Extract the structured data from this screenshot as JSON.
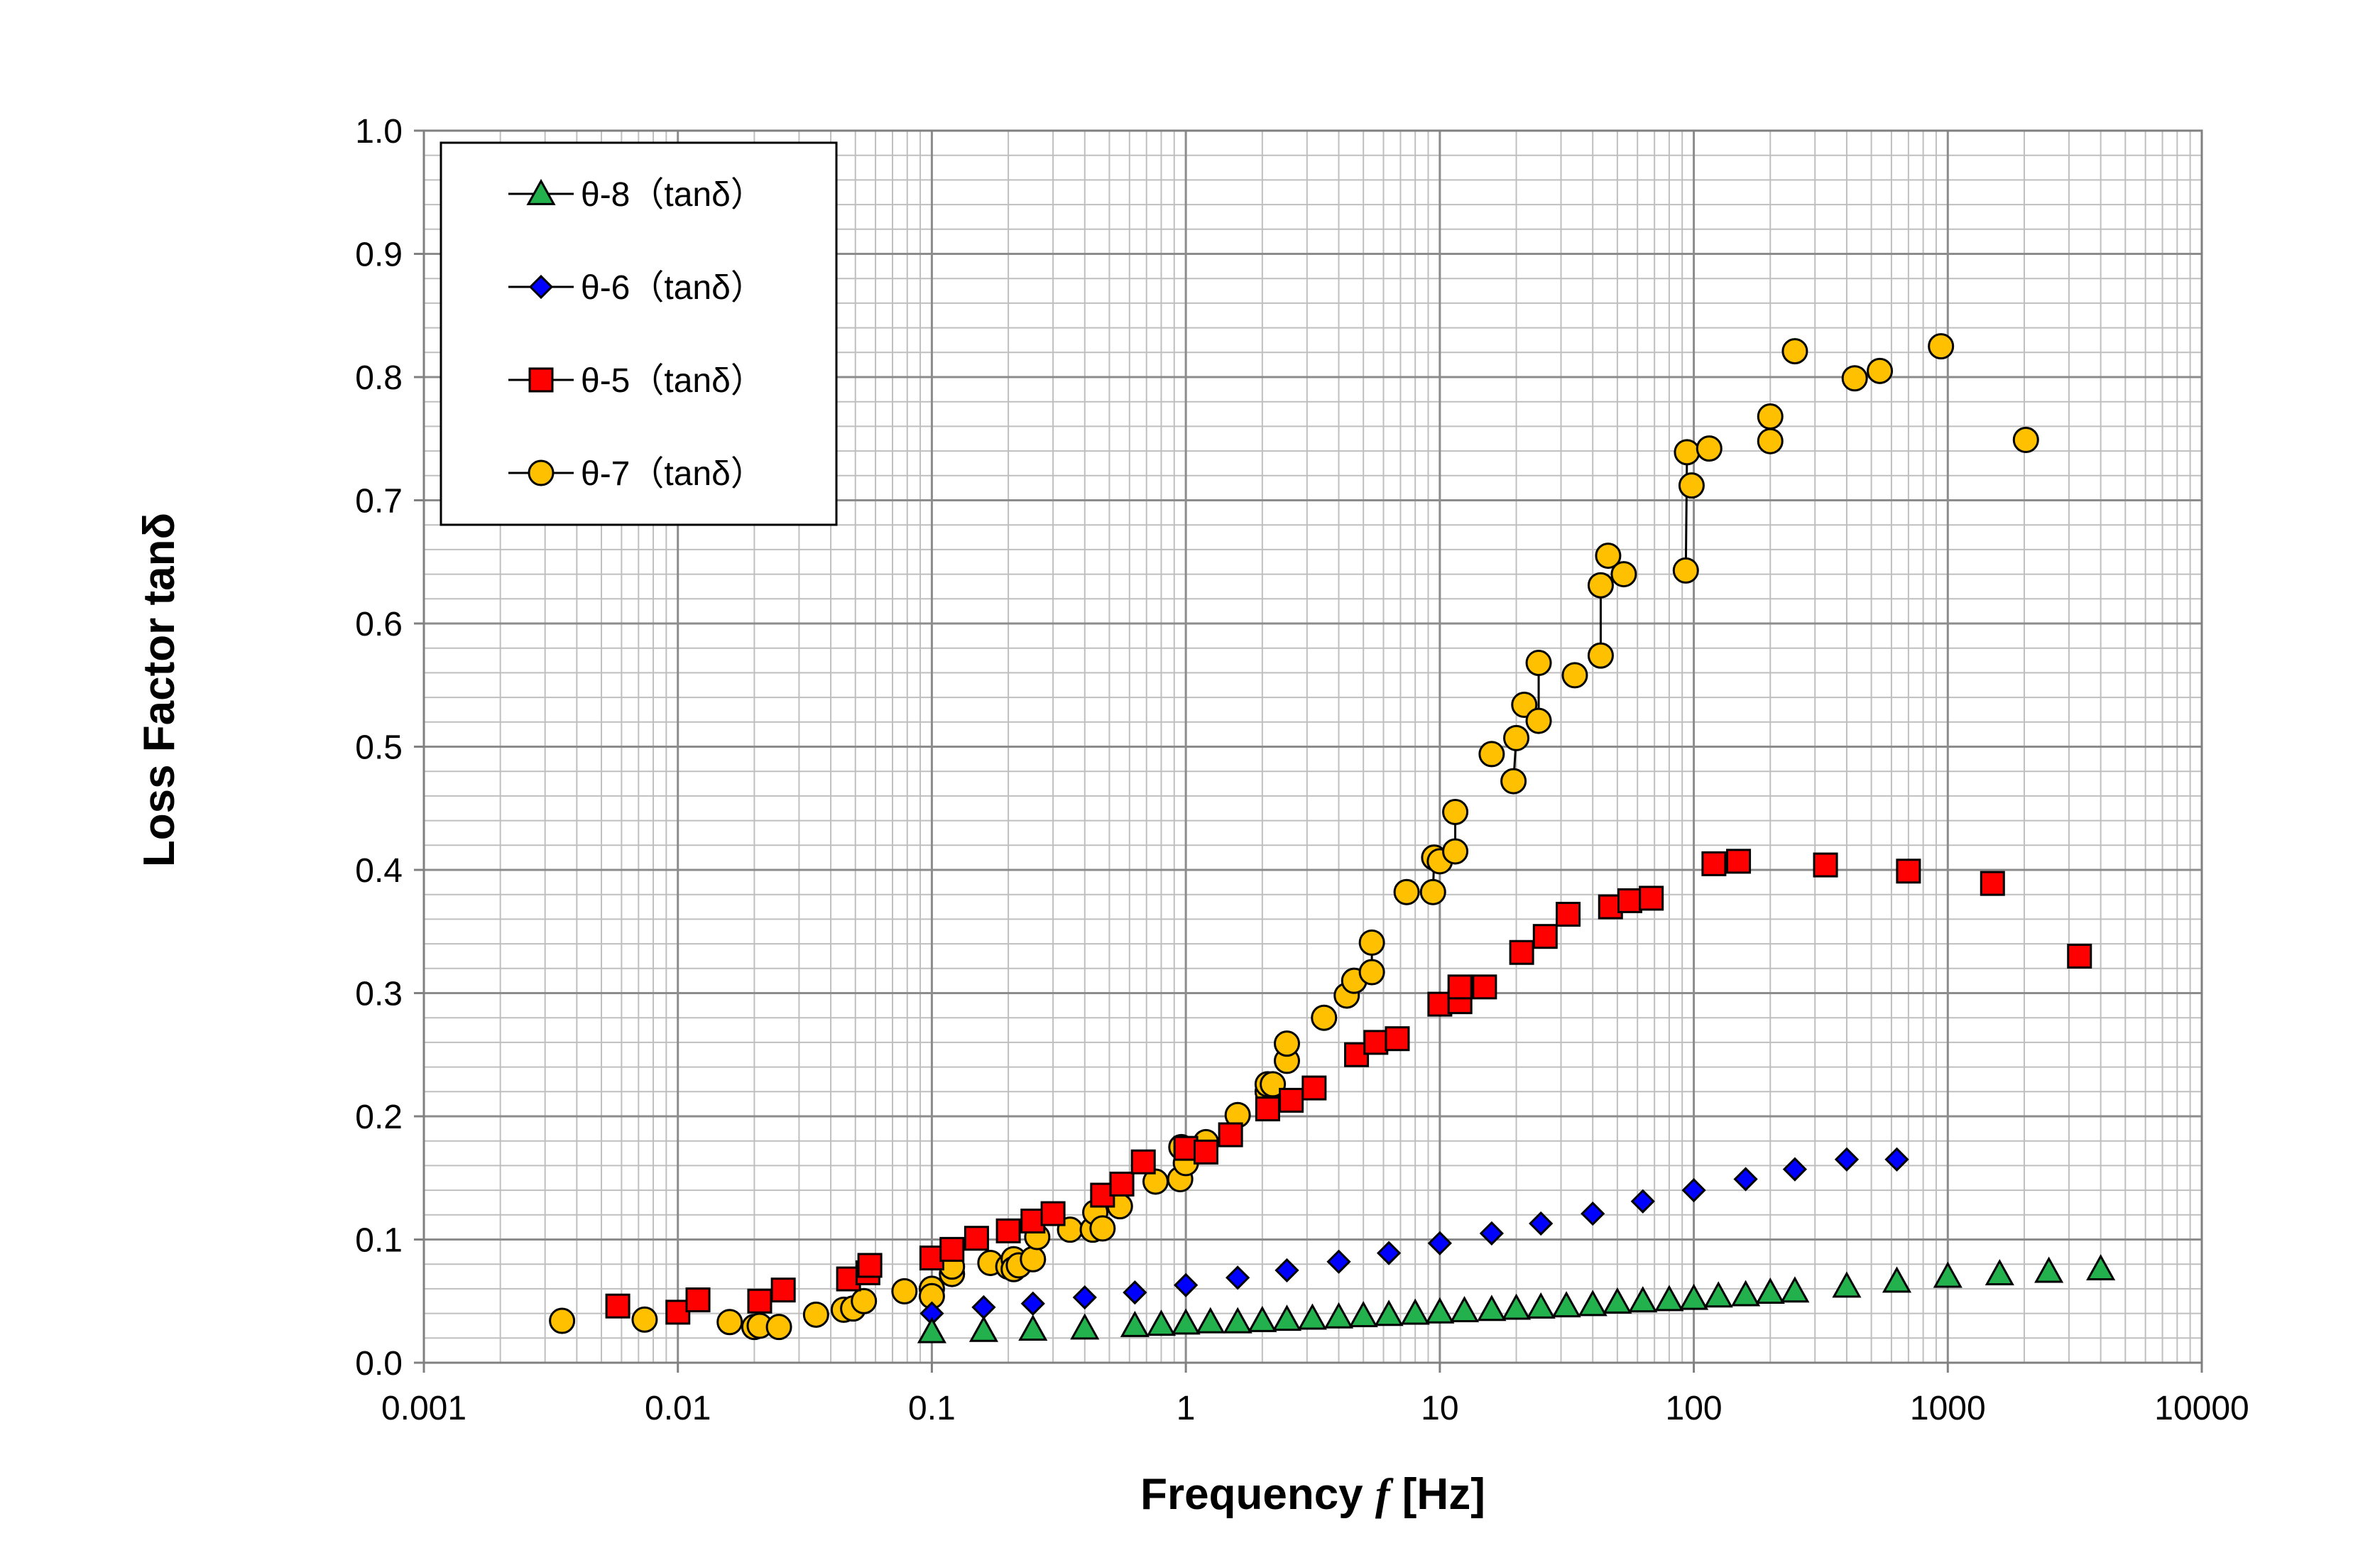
{
  "chart_data": {
    "type": "scatter",
    "title": "",
    "xlabel": "Frequency f [Hz]",
    "xlabel_parts": {
      "lead": "Frequency ",
      "var": "f",
      "tail": " [Hz]"
    },
    "ylabel": "Loss Factor tanδ",
    "x_scale": "log",
    "xlim": [
      0.001,
      10000
    ],
    "ylim": [
      0,
      1.0
    ],
    "x_ticks": [
      0.001,
      0.01,
      0.1,
      1,
      10,
      100,
      1000,
      10000
    ],
    "x_tick_labels": [
      "0.001",
      "0.01",
      "0.1",
      "1",
      "10",
      "100",
      "1000",
      "10000"
    ],
    "y_ticks": [
      0,
      0.1,
      0.2,
      0.3,
      0.4,
      0.5,
      0.6,
      0.7,
      0.8,
      0.9,
      1.0
    ],
    "y_tick_labels": [
      "0.0",
      "0.1",
      "0.2",
      "0.3",
      "0.4",
      "0.5",
      "0.6",
      "0.7",
      "0.8",
      "0.9",
      "1.0"
    ],
    "grid": true,
    "legend_position": "top-left",
    "series": [
      {
        "name": "θ-8（tanδ）",
        "marker": "triangle",
        "color": "#22b14c",
        "x": [
          0.1,
          0.16,
          0.25,
          0.4,
          0.63,
          0.8,
          1.0,
          1.25,
          1.6,
          2.0,
          2.5,
          3.15,
          4.0,
          5.0,
          6.3,
          8.0,
          10.0,
          12.5,
          16.0,
          20.0,
          25.0,
          31.5,
          40.0,
          50.0,
          63.0,
          80.0,
          100,
          125,
          160,
          200,
          250,
          400,
          630,
          1000,
          1600,
          2500,
          4000
        ],
        "y": [
          0.025,
          0.026,
          0.027,
          0.028,
          0.03,
          0.031,
          0.032,
          0.033,
          0.033,
          0.034,
          0.035,
          0.036,
          0.037,
          0.038,
          0.039,
          0.04,
          0.041,
          0.042,
          0.043,
          0.044,
          0.045,
          0.046,
          0.047,
          0.049,
          0.05,
          0.051,
          0.052,
          0.054,
          0.055,
          0.057,
          0.058,
          0.062,
          0.066,
          0.07,
          0.072,
          0.074,
          0.076
        ]
      },
      {
        "name": "θ-6（tanδ）",
        "marker": "diamond",
        "color": "#0000ff",
        "x": [
          0.1,
          0.16,
          0.25,
          0.4,
          0.63,
          1.0,
          1.6,
          2.5,
          4.0,
          6.3,
          10.0,
          16.0,
          25.0,
          40.0,
          63.0,
          100,
          160,
          250,
          400,
          630
        ],
        "y": [
          0.04,
          0.045,
          0.048,
          0.053,
          0.057,
          0.063,
          0.069,
          0.075,
          0.082,
          0.089,
          0.097,
          0.105,
          0.113,
          0.121,
          0.131,
          0.14,
          0.149,
          0.157,
          0.165,
          0.165
        ]
      },
      {
        "name": "θ-5（tanδ）",
        "marker": "square",
        "color": "#ff0000",
        "x": [
          0.0058,
          0.01,
          0.012,
          0.021,
          0.026,
          0.047,
          0.056,
          0.057,
          0.1,
          0.12,
          0.15,
          0.2,
          0.25,
          0.3,
          0.47,
          0.56,
          0.68,
          1.0,
          1.2,
          1.5,
          2.1,
          2.6,
          3.2,
          4.7,
          5.6,
          6.8,
          10.0,
          12.0,
          12.0,
          15.0,
          21.0,
          26.0,
          32.0,
          47.0,
          56.0,
          68.0,
          120,
          150,
          330,
          700,
          1500,
          3300
        ],
        "y": [
          0.046,
          0.041,
          0.051,
          0.05,
          0.059,
          0.068,
          0.073,
          0.079,
          0.085,
          0.092,
          0.101,
          0.107,
          0.115,
          0.121,
          0.136,
          0.145,
          0.163,
          0.174,
          0.171,
          0.185,
          0.206,
          0.213,
          0.223,
          0.25,
          0.26,
          0.263,
          0.291,
          0.293,
          0.305,
          0.305,
          0.333,
          0.346,
          0.364,
          0.37,
          0.375,
          0.377,
          0.405,
          0.407,
          0.404,
          0.399,
          0.389,
          0.33
        ]
      },
      {
        "name": "θ-7（tanδ）",
        "marker": "circle",
        "color": "#ffc000",
        "x": [
          0.0035,
          0.0074,
          0.016,
          0.02,
          0.021,
          0.025,
          0.035,
          0.045,
          0.049,
          0.054,
          0.078,
          0.1,
          0.1,
          0.12,
          0.12,
          0.17,
          0.2,
          0.21,
          0.21,
          0.22,
          0.25,
          0.26,
          0.35,
          0.43,
          0.44,
          0.47,
          0.55,
          0.76,
          0.95,
          0.96,
          1.0,
          1.2,
          1.6,
          2.1,
          2.1,
          2.2,
          2.5,
          2.5,
          3.5,
          4.3,
          4.6,
          5.4,
          5.4,
          7.4,
          9.4,
          9.5,
          10.0,
          11.5,
          11.5,
          16.0,
          19.5,
          20.0,
          21.5,
          24.5,
          24.5,
          34.0,
          43.0,
          43.0,
          46.0,
          53.0,
          93.0,
          94.0,
          98.0,
          115,
          200,
          200,
          250,
          430,
          540,
          940,
          2030
        ],
        "y": [
          0.034,
          0.035,
          0.033,
          0.029,
          0.03,
          0.029,
          0.039,
          0.043,
          0.044,
          0.05,
          0.058,
          0.06,
          0.054,
          0.072,
          0.078,
          0.081,
          0.078,
          0.084,
          0.076,
          0.079,
          0.084,
          0.102,
          0.108,
          0.108,
          0.122,
          0.109,
          0.127,
          0.147,
          0.149,
          0.175,
          0.162,
          0.179,
          0.201,
          0.22,
          0.226,
          0.226,
          0.245,
          0.259,
          0.28,
          0.298,
          0.31,
          0.317,
          0.341,
          0.382,
          0.382,
          0.41,
          0.407,
          0.415,
          0.447,
          0.494,
          0.472,
          0.507,
          0.534,
          0.521,
          0.568,
          0.558,
          0.574,
          0.631,
          0.655,
          0.64,
          0.643,
          0.739,
          0.712,
          0.742,
          0.748,
          0.768,
          0.821,
          0.799,
          0.805,
          0.825,
          0.749
        ]
      }
    ]
  }
}
